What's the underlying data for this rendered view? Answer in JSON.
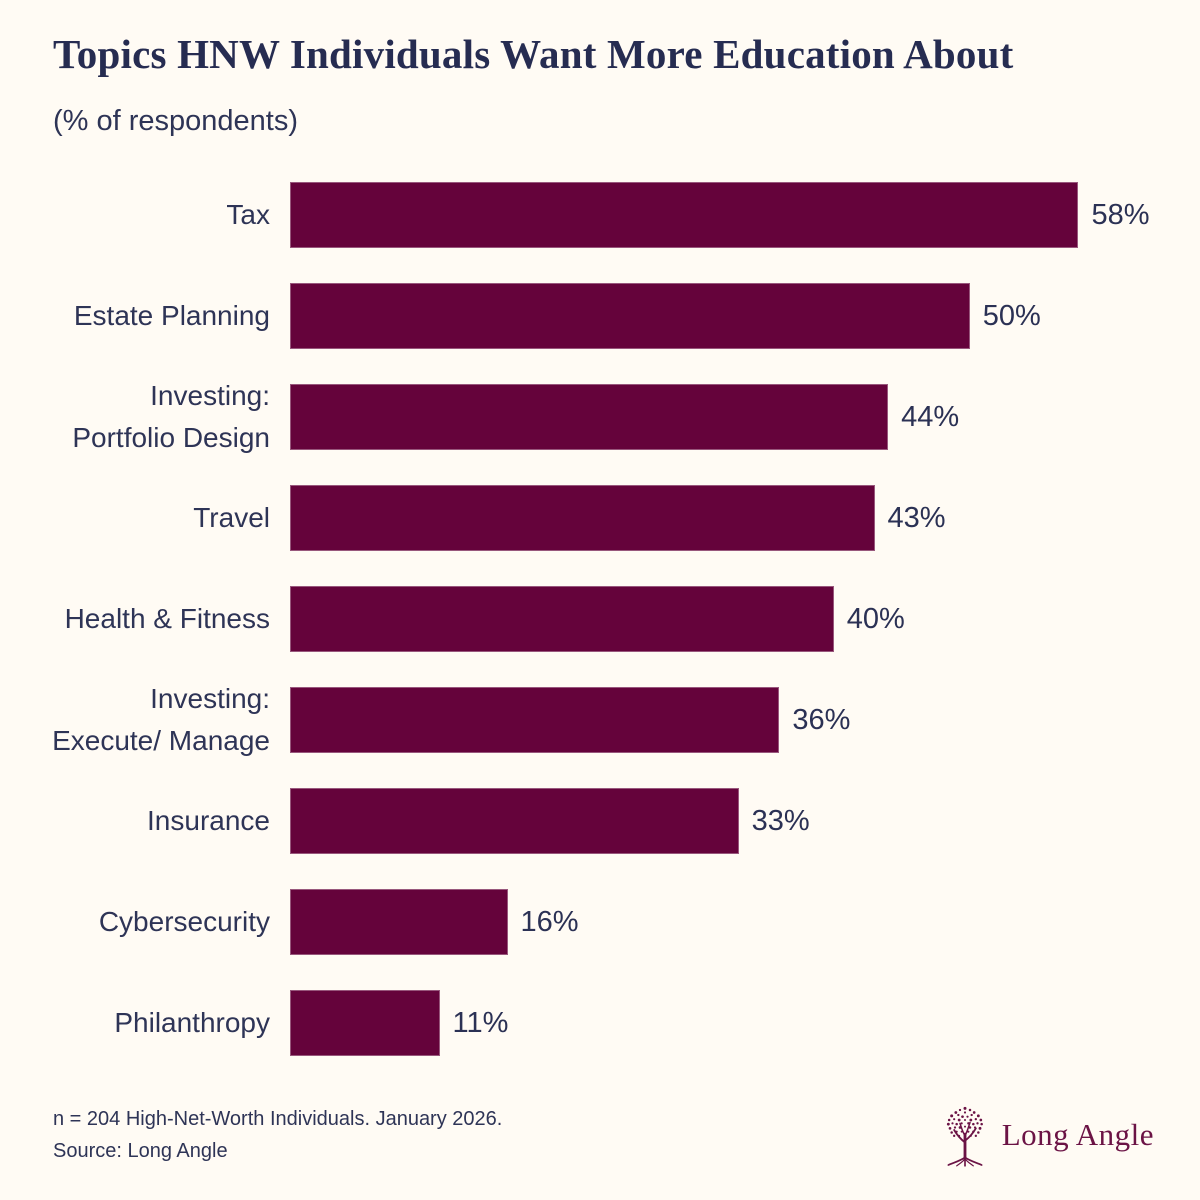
{
  "header": {
    "title": "Topics HNW Individuals Want More Education About",
    "subtitle": "(% of respondents)"
  },
  "chart_data": {
    "type": "bar",
    "orientation": "horizontal",
    "title": "Topics HNW Individuals Want More Education About",
    "subtitle": "(% of respondents)",
    "xlabel": "",
    "ylabel": "",
    "xlim": [
      0,
      64
    ],
    "grid": false,
    "legend": false,
    "bar_color": "#65033B",
    "categories": [
      "Tax",
      "Estate Planning",
      "Investing:\nPortfolio Design",
      "Travel",
      "Health & Fitness",
      "Investing:\nExecute/ Manage",
      "Insurance",
      "Cybersecurity",
      "Philanthropy"
    ],
    "values": [
      58,
      50,
      44,
      43,
      40,
      36,
      33,
      16,
      11
    ],
    "value_labels": [
      "58%",
      "50%",
      "44%",
      "43%",
      "40%",
      "36%",
      "33%",
      "16%",
      "11%"
    ]
  },
  "footer": {
    "note_line1": "n = 204 High-Net-Worth Individuals. January 2026.",
    "note_line2": "Source: Long Angle",
    "logo_text": "Long Angle"
  },
  "colors": {
    "background": "#FFFBF4",
    "bar": "#65033B",
    "title_text": "#262C51",
    "label_text": "#2E3456",
    "logo": "#6B1345"
  }
}
